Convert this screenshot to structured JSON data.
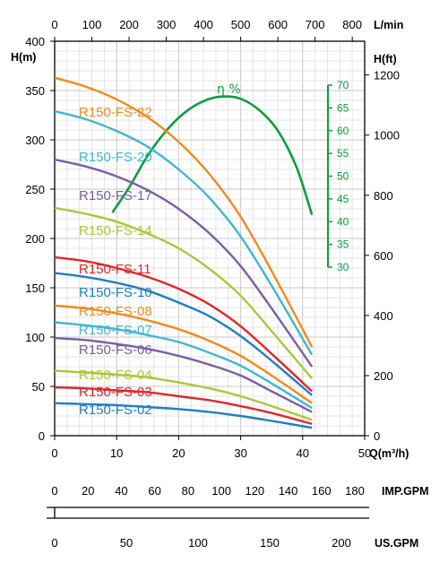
{
  "chart_data": {
    "type": "line",
    "grid": true,
    "xlabel": "Q(m³/h)",
    "ylabel": "H(m)",
    "xlim": [
      0,
      50
    ],
    "ylim": [
      0,
      400
    ],
    "x_ticks": [
      "0",
      "10",
      "20",
      "30",
      "40",
      "50"
    ],
    "y_ticks": [
      "0",
      "50",
      "100",
      "150",
      "200",
      "250",
      "300",
      "350",
      "400"
    ],
    "top_axis": {
      "label": "L/min",
      "ticks": [
        "0",
        "100",
        "200",
        "300",
        "400",
        "500",
        "600",
        "700",
        "800"
      ]
    },
    "right_axis": {
      "label": "H(ft)",
      "ticks": [
        "0",
        "200",
        "400",
        "600",
        "800",
        "1000",
        "1200"
      ]
    },
    "efficiency_axis": {
      "label": "η %",
      "ticks": [
        "30",
        "35",
        "40",
        "45",
        "50",
        "55",
        "60",
        "65",
        "70"
      ],
      "range": [
        30,
        70
      ],
      "color": "#0a9e3c"
    },
    "efficiency_curve": {
      "x": [
        9.3,
        12,
        15,
        18,
        21,
        24,
        27,
        30,
        33,
        36,
        39,
        41.5
      ],
      "y": [
        42,
        47.5,
        54.5,
        60,
        64,
        66.5,
        67.5,
        67,
        64.5,
        60,
        52,
        41.5
      ]
    },
    "series": [
      {
        "name": "R150-FS-22",
        "color": "#f08a1c",
        "x": [
          0,
          5,
          10,
          15,
          20,
          25,
          30,
          35,
          41.5
        ],
        "y": [
          363,
          354,
          341,
          323,
          298,
          265,
          222,
          167,
          90
        ]
      },
      {
        "name": "R150-FS-20",
        "color": "#3fb7d2",
        "x": [
          0,
          5,
          10,
          15,
          20,
          25,
          30,
          35,
          41.5
        ],
        "y": [
          329,
          321,
          309,
          293,
          270,
          241,
          202,
          152,
          82
        ]
      },
      {
        "name": "R150-FS-17",
        "color": "#7b5ea7",
        "x": [
          0,
          5,
          10,
          15,
          20,
          25,
          30,
          35,
          41.5
        ],
        "y": [
          280,
          273,
          263,
          249,
          230,
          205,
          172,
          129,
          70
        ]
      },
      {
        "name": "R150-FS-14",
        "color": "#a8c83a",
        "x": [
          0,
          5,
          10,
          15,
          20,
          25,
          30,
          35,
          41.5
        ],
        "y": [
          231,
          225,
          217,
          205,
          190,
          169,
          142,
          106,
          58
        ]
      },
      {
        "name": "R150-FS-11",
        "color": "#e0262a",
        "x": [
          0,
          5,
          10,
          15,
          20,
          25,
          30,
          35,
          41.5
        ],
        "y": [
          181,
          177,
          170,
          161,
          149,
          133,
          111,
          83,
          45
        ]
      },
      {
        "name": "R150-FS-10",
        "color": "#1f7fc2",
        "x": [
          0,
          5,
          10,
          15,
          20,
          25,
          30,
          35,
          41.5
        ],
        "y": [
          165,
          161,
          155,
          147,
          135,
          121,
          101,
          76,
          41
        ]
      },
      {
        "name": "R150-FS-08",
        "color": "#f08a1c",
        "x": [
          0,
          5,
          10,
          15,
          20,
          25,
          30,
          35,
          41.5
        ],
        "y": [
          132,
          129,
          124,
          117,
          108,
          96,
          81,
          61,
          33
        ]
      },
      {
        "name": "R150-FS-07",
        "color": "#3fb7d2",
        "x": [
          0,
          5,
          10,
          15,
          20,
          25,
          30,
          35,
          41.5
        ],
        "y": [
          115,
          112,
          108,
          102,
          95,
          84,
          71,
          53,
          28
        ]
      },
      {
        "name": "R150-FS-06",
        "color": "#7b5ea7",
        "x": [
          0,
          5,
          10,
          15,
          20,
          25,
          30,
          35,
          41.5
        ],
        "y": [
          99,
          97,
          93,
          88,
          81,
          72,
          61,
          45,
          24
        ]
      },
      {
        "name": "R150-FS-04",
        "color": "#a8c83a",
        "x": [
          0,
          5,
          10,
          15,
          20,
          25,
          30,
          35,
          41.5
        ],
        "y": [
          66,
          64,
          62,
          59,
          54,
          48,
          40,
          30,
          16
        ]
      },
      {
        "name": "R150-FS-03",
        "color": "#e0262a",
        "x": [
          0,
          5,
          10,
          15,
          20,
          25,
          30,
          35,
          41.5
        ],
        "y": [
          49,
          48,
          46,
          44,
          40,
          36,
          30,
          23,
          12
        ]
      },
      {
        "name": "R150-FS-02",
        "color": "#1f7fc2",
        "x": [
          0,
          5,
          10,
          15,
          20,
          25,
          30,
          35,
          41.5
        ],
        "y": [
          33,
          32,
          31,
          29,
          27,
          24,
          20,
          15,
          8
        ]
      }
    ],
    "imp_gpm_axis": {
      "label": "IMP.GPM",
      "ticks": [
        "0",
        "20",
        "40",
        "60",
        "80",
        "100",
        "120",
        "140",
        "160",
        "180"
      ]
    },
    "us_gpm_axis": {
      "label": "US.GPM",
      "ticks": [
        "0",
        "50",
        "100",
        "150",
        "200"
      ]
    }
  }
}
